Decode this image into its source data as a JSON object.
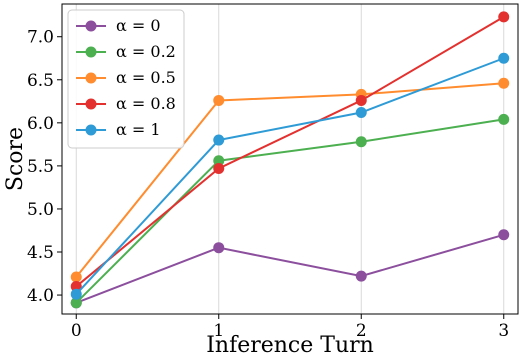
{
  "chart_data": {
    "type": "line",
    "title": "",
    "xlabel": "Inference Turn",
    "ylabel": "Score",
    "x": [
      0,
      1,
      2,
      3
    ],
    "xlim": [
      -0.1,
      3.1
    ],
    "ylim": [
      3.78,
      7.38
    ],
    "xticks": [
      "0",
      "1",
      "2",
      "3"
    ],
    "yticks": [
      "4.0",
      "4.5",
      "5.0",
      "5.5",
      "6.0",
      "6.5",
      "7.0"
    ],
    "grid": "vertical",
    "legend_position": "top-left",
    "series": [
      {
        "name": "α = 0",
        "color": "#8c4f9e",
        "values": [
          3.91,
          4.55,
          4.22,
          4.7
        ]
      },
      {
        "name": "α = 0.2",
        "color": "#4caf50",
        "values": [
          3.91,
          5.56,
          5.78,
          6.04
        ]
      },
      {
        "name": "α = 0.5",
        "color": "#ff8c2e",
        "values": [
          4.21,
          6.26,
          6.33,
          6.46
        ]
      },
      {
        "name": "α = 0.8",
        "color": "#e3312f",
        "values": [
          4.1,
          5.47,
          6.26,
          7.23
        ]
      },
      {
        "name": "α = 1",
        "color": "#2e9bd6",
        "values": [
          4.01,
          5.8,
          6.12,
          6.75
        ]
      }
    ]
  }
}
